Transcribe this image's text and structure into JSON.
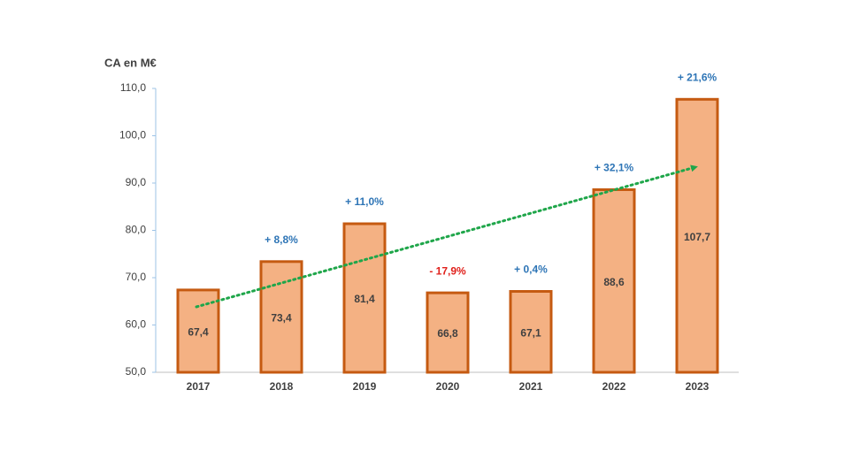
{
  "chart_data": {
    "type": "bar",
    "y_axis_label": "CA en M€",
    "categories": [
      "2017",
      "2018",
      "2019",
      "2020",
      "2021",
      "2022",
      "2023"
    ],
    "values": [
      67.4,
      73.4,
      81.4,
      66.8,
      67.1,
      88.6,
      107.7
    ],
    "value_labels": [
      "67,4",
      "73,4",
      "81,4",
      "66,8",
      "67,1",
      "88,6",
      "107,7"
    ],
    "color": "#f4b183",
    "edge_color": "#c55a11",
    "annotations": [
      null,
      {
        "text": "+ 8,8%",
        "color": "#2e75b6"
      },
      {
        "text": "+ 11,0%",
        "color": "#2e75b6"
      },
      {
        "text": "- 17,9%",
        "color": "#e0201b"
      },
      {
        "text": "+ 0,4%",
        "color": "#2e75b6"
      },
      {
        "text": "+ 32,1%",
        "color": "#2e75b6"
      },
      {
        "text": "+ 21,6%",
        "color": "#2e75b6"
      }
    ],
    "ylim": [
      50,
      110
    ],
    "yticks": [
      {
        "value": 50,
        "label": "50,0"
      },
      {
        "value": 60,
        "label": "60,0"
      },
      {
        "value": 70,
        "label": "70,0"
      },
      {
        "value": 80,
        "label": "80,0"
      },
      {
        "value": 90,
        "label": "90,0"
      },
      {
        "value": 100,
        "label": "100,0"
      },
      {
        "value": 110,
        "label": "110,0"
      }
    ],
    "grid": false
  }
}
